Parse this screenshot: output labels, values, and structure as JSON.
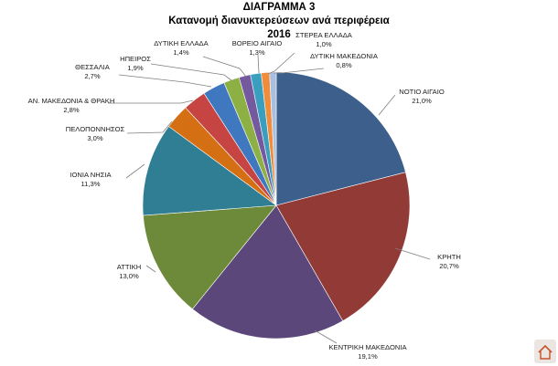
{
  "chart_data": {
    "type": "pie",
    "title": [
      "ΔΙΑΓΡΑΜΜΑ 3",
      "Κατανομή διανυκτερεύσεων ανά περιφέρεια",
      "2016"
    ],
    "slices": [
      {
        "label": "ΝΟΤΙΟ ΑΙΓΑΙΟ",
        "value": 21.0,
        "value_text": "21,0%",
        "color": "#3c5f8c"
      },
      {
        "label": "ΚΡΗΤΗ",
        "value": 20.7,
        "value_text": "20,7%",
        "color": "#923a36"
      },
      {
        "label": "ΚΕΝΤΡΙΚΗ ΜΑΚΕΔΟΝΙΑ",
        "value": 19.1,
        "value_text": "19,1%",
        "color": "#5b477a"
      },
      {
        "label": "ΑΤΤΙΚΗ",
        "value": 13.0,
        "value_text": "13,0%",
        "color": "#6d8a3a"
      },
      {
        "label": "ΙΟΝΙΑ ΝΗΣΙΑ",
        "value": 11.3,
        "value_text": "11,3%",
        "color": "#2f7e94"
      },
      {
        "label": "ΠΕΛΟΠΟΝΝΗΣΟΣ",
        "value": 3.0,
        "value_text": "3,0%",
        "color": "#d46f14"
      },
      {
        "label": "ΑΝ. ΜΑΚΕΔΟΝΙΑ & ΘΡΑΚΗ",
        "value": 2.8,
        "value_text": "2,8%",
        "color": "#c64442"
      },
      {
        "label": "ΘΕΣΣΑΛΙΑ",
        "value": 2.7,
        "value_text": "2,7%",
        "color": "#3f78bf"
      },
      {
        "label": "ΗΠΕΙΡΟΣ",
        "value": 1.9,
        "value_text": "1,9%",
        "color": "#8cb044"
      },
      {
        "label": "ΔΥΤΙΚΗ ΕΛΛΑΔΑ",
        "value": 1.4,
        "value_text": "1,4%",
        "color": "#75599e"
      },
      {
        "label": "ΒΟΡΕΙΟ ΑΙΓΑΙΟ",
        "value": 1.3,
        "value_text": "1,3%",
        "color": "#3a9fbe"
      },
      {
        "label": "ΣΤΕΡΕΑ ΕΛΛΑΔΑ",
        "value": 1.0,
        "value_text": "1,0%",
        "color": "#f08c3a"
      },
      {
        "label": "ΔΥΤΙΚΗ ΜΑΚΕΔΟΝΙΑ",
        "value": 0.8,
        "value_text": "0,8%",
        "color": "#a9bfe0"
      }
    ]
  },
  "logo_icon": "house-logo-icon"
}
